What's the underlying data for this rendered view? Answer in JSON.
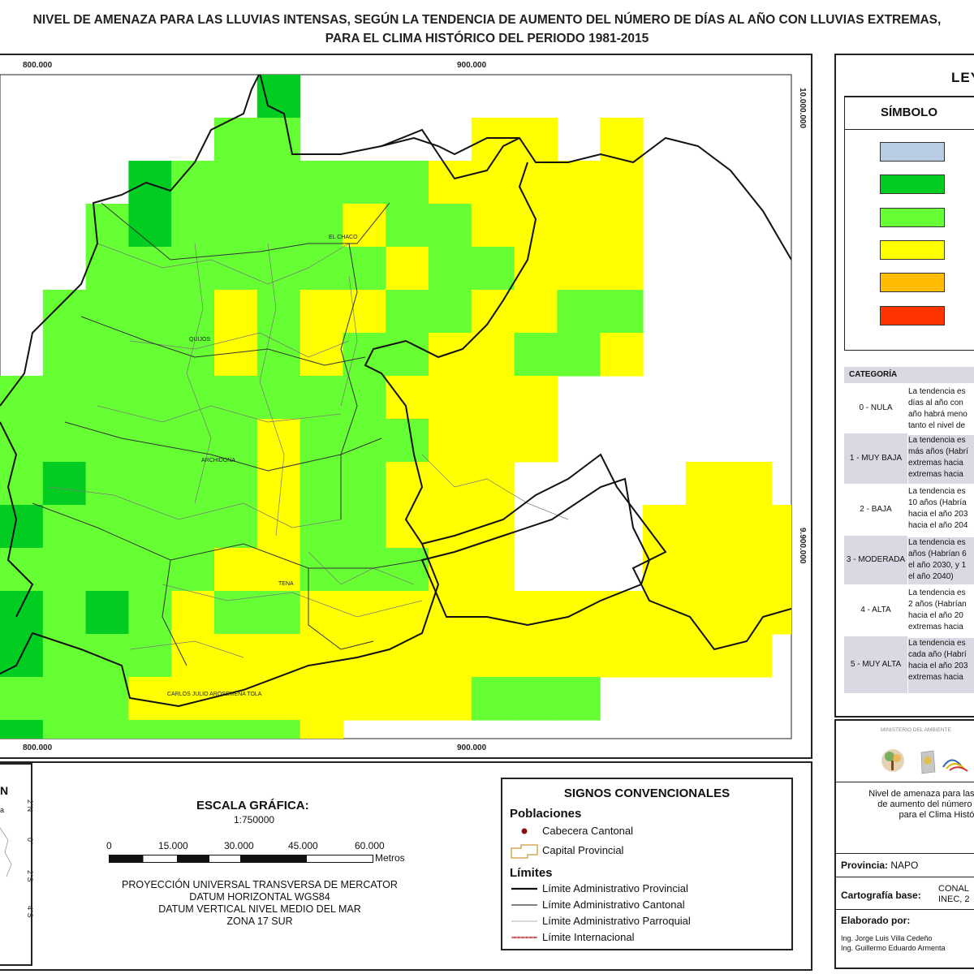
{
  "title": {
    "line1": "NIVEL DE AMENAZA PARA LAS LLUVIAS INTENSAS, SEGÚN LA TENDENCIA DE AUMENTO DEL NÚMERO DE DÍAS AL AÑO CON LLUVIAS EXTREMAS,",
    "line2": "PARA EL CLIMA HISTÓRICO DEL PERIODO 1981-2015"
  },
  "map": {
    "x_coords": [
      "800.000",
      "900.000"
    ],
    "y_coords": [
      "10.000.000",
      "9.900.000"
    ],
    "places": [
      "EL CHACO",
      "QUIJOS",
      "ARCHIDONA",
      "TENA",
      "CARLOS JULIO AROSEMENA TOLA"
    ],
    "colors": {
      "nula": "#b8cce4",
      "muy_baja": "#00cc22",
      "baja": "#66ff33",
      "moderada": "#ffff00",
      "alta": "#ffbb00",
      "muy_alta": "#ff3300"
    }
  },
  "legend": {
    "title": "LEY",
    "symbol_header": "SÍMBOLO",
    "category_header": "CATEGORÍA",
    "categories": [
      {
        "label": "0 - NULA",
        "desc": [
          "La tendencia es",
          "días al año con",
          "año habrá meno",
          "tanto el nivel de"
        ]
      },
      {
        "label": "1 - MUY BAJA",
        "desc": [
          "La tendencia es",
          "más años (Habrí",
          "extremas hacia",
          "extremas hacia"
        ]
      },
      {
        "label": "2 - BAJA",
        "desc": [
          "La tendencia es",
          "10 años (Habría",
          "hacia el año 203",
          "hacia el año 204"
        ]
      },
      {
        "label": "3 - MODERADA",
        "desc": [
          "La tendencia es",
          "años (Habrían 6",
          "el año 2030, y 1",
          "el año 2040)"
        ]
      },
      {
        "label": "4 - ALTA",
        "desc": [
          "La tendencia es",
          "2 años (Habrían",
          "hacia el año 20",
          "extremas hacia"
        ]
      },
      {
        "label": "5 - MUY ALTA",
        "desc": [
          "La tendencia es",
          "cada año (Habrí",
          "hacia el año 203",
          "extremas hacia"
        ]
      }
    ]
  },
  "inset": {
    "title": "N",
    "labels": [
      "a"
    ],
    "lat_ticks": [
      "2°N",
      "0°",
      "2°S",
      "4°S"
    ]
  },
  "scale": {
    "title": "ESCALA GRÁFICA:",
    "ratio": "1:750000",
    "ticks": [
      "0",
      "15.000",
      "30.000",
      "45.000",
      "60.000"
    ],
    "unit": "Metros",
    "projection": [
      "PROYECCIÓN UNIVERSAL TRANSVERSA DE MERCATOR",
      "DATUM HORIZONTAL WGS84",
      "DATUM VERTICAL NIVEL MEDIO DEL MAR",
      "ZONA 17 SUR"
    ]
  },
  "signs": {
    "title": "SIGNOS CONVENCIONALES",
    "populations_header": "Poblaciones",
    "cabecera": "Cabecera Cantonal",
    "capital": "Capital Provincial",
    "limits_header": "Límites",
    "limits": [
      "Límite Administrativo Provincial",
      "Límite Administrativo Cantonal",
      "Límite Administrativo Parroquial",
      "Límite Internacional"
    ]
  },
  "credits": {
    "ministerio": "MINISTERIO DEL AMBIENTE",
    "description": [
      "Nivel de amenaza para las L",
      "de aumento del número de",
      "para el Clima Históri"
    ],
    "provincia_label": "Provincia:",
    "provincia_value": "NAPO",
    "cartografia_label": "Cartografía base:",
    "cartografia_value": [
      "CONAL",
      "INEC, 2"
    ],
    "elaborado_label": "Elaborado por:",
    "authors": [
      "Ing. Jorge Luis Villa Cedeño",
      "Ing. Guillermo Eduardo Armenta"
    ]
  }
}
